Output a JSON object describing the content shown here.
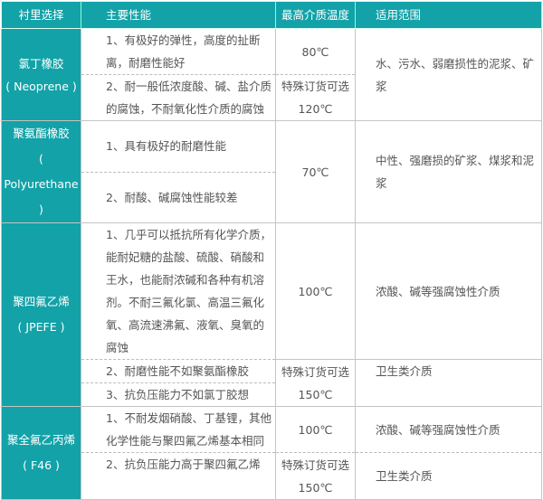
{
  "header": [
    "衬里选择",
    "主要性能",
    "最高介质温度",
    "适用范围"
  ],
  "rows": [
    {
      "name": "氯丁橡胶",
      "code": "( Neoprene )",
      "props": [
        "1、有极好的弹性，高度的扯断离，耐磨性能好",
        "2、耐一般低浓度酸、碱、盐介质的腐蚀，不耐氧化性介质的腐蚀"
      ],
      "temps": [
        "80℃",
        "特殊订货可选",
        "120℃"
      ],
      "scope": [
        "水、污水、弱磨损性的泥浆、矿浆"
      ]
    },
    {
      "name": "聚氨酯橡胶",
      "code": "( Polyurethane )",
      "props": [
        "1、具有极好的耐磨性能",
        "2、耐酸、碱腐蚀性能较差"
      ],
      "temps": [
        "70℃"
      ],
      "scope": [
        "中性、强磨损的矿浆、煤浆和泥浆"
      ]
    },
    {
      "name": "聚四氟乙烯",
      "code": "( JPEFE )",
      "props": [
        "1、几乎可以抵抗所有化学介质，能耐妃糖的盐酸、硫酸、硝酸和王水，也能耐浓碱和各种有机溶剂。不耐三氟化氯、高温三氟化氧、高流速沸氟、液氧、臭氧的腐蚀",
        "2、耐磨性能不如聚氨酯橡胶",
        "3、抗负压能力不如氯丁胶想"
      ],
      "temps": [
        "100℃",
        "特殊订货可选",
        "150℃"
      ],
      "scope": [
        "浓酸、碱等强腐蚀性介质",
        "卫生类介质"
      ]
    },
    {
      "name": "聚全氟乙丙烯",
      "code": "( F46 )",
      "props": [
        "1、不耐发烟硝酸、丁基锂，其他化学性能与聚四氟乙烯基本相同",
        "2、抗负压能力高于聚四氟乙烯"
      ],
      "temps": [
        "100℃",
        "特殊订货可选",
        "150℃"
      ],
      "scope": [
        "浓酸、碱等强腐蚀性介质",
        "卫生类介质"
      ]
    }
  ]
}
